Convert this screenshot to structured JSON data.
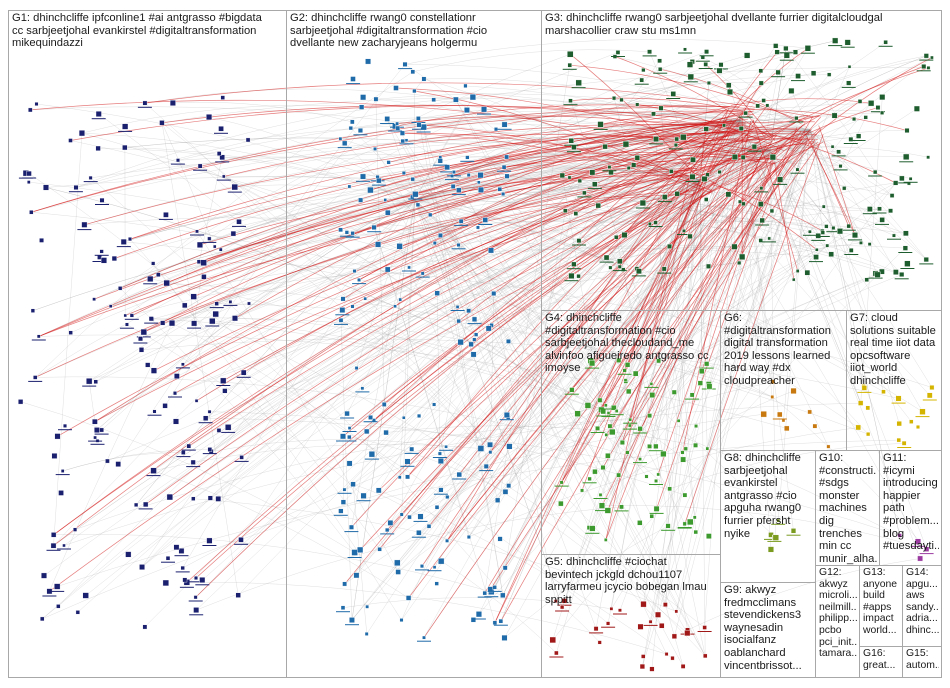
{
  "groups": [
    {
      "id": "G1",
      "label": "G1: dhinchcliffe ipfconline1 #ai antgrasso #bigdata\ncc sarbjeetjohal evankirstel #digitaltransformation\nmikequindazzi",
      "color": "#1a1f6e"
    },
    {
      "id": "G2",
      "label": "G2: dhinchcliffe rwang0 constellationr\nsarbjeetjohal #digitaltransformation #cio\ndvellante new zacharyjeans holgermu",
      "color": "#1f6aa8"
    },
    {
      "id": "G3",
      "label": "G3: dhinchcliffe rwang0 sarbjeetjohal dvellante furrier digitalcloudgal\nmarshacollier craw stu ms1mn",
      "color": "#1e5e2e"
    },
    {
      "id": "G4",
      "label": "G4: dhinchcliffe\n#digitaltransformation #cio\nsarbjeetjohal thecloudand_me\nalvinfoo afigueiredo antgrasso cc\nimoyse",
      "color": "#3c9a2e"
    },
    {
      "id": "G5",
      "label": "G5: dhinchcliffe #ciochat\nbevintech jckgld dchou1107\nlarryfarmeu jcycio bobegan lmau\nsppitt",
      "color": "#a01818"
    },
    {
      "id": "G6",
      "label": "G6:\n#digitaltransformation\ndigital transformation\n2019 lessons learned\nhard way #dx\ncloudpreacher",
      "color": "#c87a10"
    },
    {
      "id": "G7",
      "label": "G7: cloud\nsolutions suitable\nreal time iiot data\nopcsoftware\niiot_world\ndhinchcliffe",
      "color": "#d4b400"
    },
    {
      "id": "G8",
      "label": "G8: dhinchcliffe\nsarbjeetjohal\nevankirstel\nantgrasso #cio\napguha rwang0\nfurrier pfersht\nnyike",
      "color": "#7a9a20"
    },
    {
      "id": "G9",
      "label": "G9: akwyz\nfredmcclimans\nstevendickens3\nwaynesadin\nisocialfanz\noablanchard\nvincentbrissot...",
      "color": "#555555"
    },
    {
      "id": "G10",
      "label": "G10:\n#constructi...\n#sdgs\nmonster\nmachines\ndig trenches\nmin cc\nmunir_alha...",
      "color": "#777777"
    },
    {
      "id": "G11",
      "label": "G11:\n#icymi\nintroducing\nhappier\npath\n#problem...\nblog\n#tuesdayti...",
      "color": "#9a3aa0"
    },
    {
      "id": "G12",
      "label": "G12:\nakwyz\nmicroli...\nneilmill...\nphilipp...\npcbo\npci_init...\ntamara...",
      "color": "#666666"
    },
    {
      "id": "G13",
      "label": "G13:\nanyone\nbuild\n#apps\nimpact\nworld...",
      "color": "#666666"
    },
    {
      "id": "G14",
      "label": "G14:\napgu...\naws\nsandy...\nadria...\ndhinc...",
      "color": "#666666"
    },
    {
      "id": "G15",
      "label": "G15:\nautom...",
      "color": "#666666"
    },
    {
      "id": "G16",
      "label": "G16:\ngreat...",
      "color": "#666666"
    }
  ]
}
